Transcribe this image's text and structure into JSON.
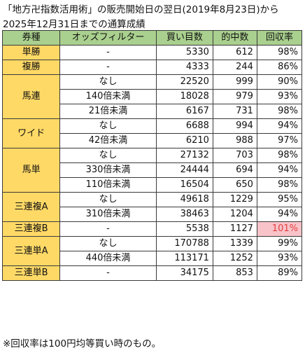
{
  "title": {
    "line1": "「地方卍指数活用術」の販売開始日の翌日(2019年8月23日)から",
    "line2": "2025年12月31日までの通算成績"
  },
  "table": {
    "headers": [
      "券種",
      "オッズフィルター",
      "買い目数",
      "的中数",
      "回収率"
    ],
    "groups": [
      {
        "kind": "単勝",
        "rows": [
          {
            "filter": "-",
            "bets": "5330",
            "hits": "612",
            "rate": "98%"
          }
        ]
      },
      {
        "kind": "複勝",
        "rows": [
          {
            "filter": "-",
            "bets": "4333",
            "hits": "244",
            "rate": "86%"
          }
        ]
      },
      {
        "kind": "馬連",
        "rows": [
          {
            "filter": "なし",
            "bets": "22520",
            "hits": "999",
            "rate": "90%"
          },
          {
            "filter": "140倍未満",
            "bets": "18028",
            "hits": "979",
            "rate": "93%"
          },
          {
            "filter": "21倍未満",
            "bets": "6167",
            "hits": "731",
            "rate": "98%"
          }
        ]
      },
      {
        "kind": "ワイド",
        "rows": [
          {
            "filter": "なし",
            "bets": "6688",
            "hits": "994",
            "rate": "94%"
          },
          {
            "filter": "42倍未満",
            "bets": "6210",
            "hits": "988",
            "rate": "97%"
          }
        ]
      },
      {
        "kind": "馬単",
        "rows": [
          {
            "filter": "なし",
            "bets": "27132",
            "hits": "703",
            "rate": "98%"
          },
          {
            "filter": "330倍未満",
            "bets": "24444",
            "hits": "694",
            "rate": "94%"
          },
          {
            "filter": "110倍未満",
            "bets": "16504",
            "hits": "650",
            "rate": "98%"
          }
        ]
      },
      {
        "kind": "三連複A",
        "rows": [
          {
            "filter": "なし",
            "bets": "49618",
            "hits": "1229",
            "rate": "95%"
          },
          {
            "filter": "310倍未満",
            "bets": "38463",
            "hits": "1204",
            "rate": "94%"
          }
        ]
      },
      {
        "kind": "三連複B",
        "rows": [
          {
            "filter": "-",
            "bets": "5538",
            "hits": "1127",
            "rate": "101%",
            "highlight": true
          }
        ]
      },
      {
        "kind": "三連単A",
        "rows": [
          {
            "filter": "なし",
            "bets": "170788",
            "hits": "1339",
            "rate": "99%"
          },
          {
            "filter": "440倍未満",
            "bets": "113171",
            "hits": "1252",
            "rate": "93%"
          }
        ]
      },
      {
        "kind": "三連単B",
        "rows": [
          {
            "filter": "-",
            "bets": "34175",
            "hits": "853",
            "rate": "89%"
          }
        ]
      }
    ]
  },
  "note": "※回収率は100円均等買い時のもの。",
  "colors": {
    "header_bg": "#a9d08e",
    "kind_bg": "#ffd966",
    "highlight_bg": "#f8c3c9",
    "highlight_text": "#e2403f"
  }
}
